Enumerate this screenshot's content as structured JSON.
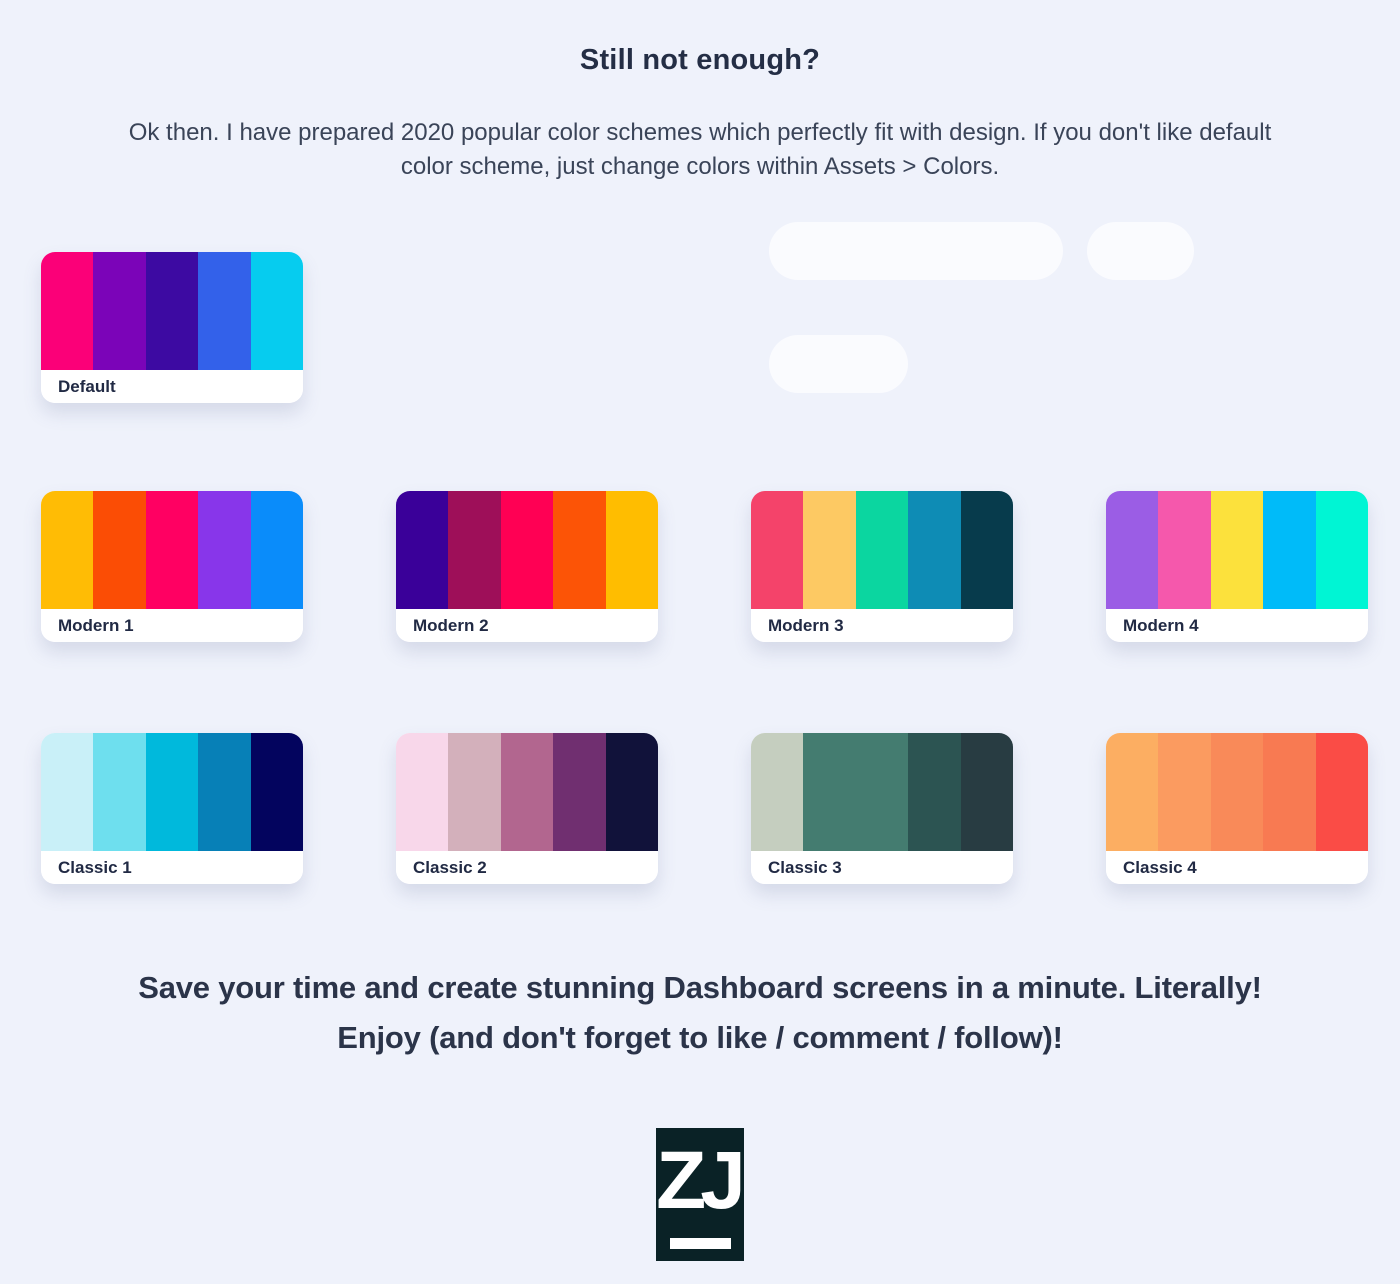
{
  "page": {
    "background": "#EFF2FB"
  },
  "header": {
    "title": "Still not enough?",
    "description": "Ok then. I have prepared 2020 popular color schemes which perfectly fit with design. If you don't like default color scheme, just change colors within Assets > Colors."
  },
  "palettes": [
    {
      "label": "Default",
      "colors": [
        "#FB0078",
        "#7B04B8",
        "#3D0AA2",
        "#3361EA",
        "#06CCEF"
      ]
    },
    {
      "label": "Modern 1",
      "colors": [
        "#FFBC05",
        "#FB4D05",
        "#FF0062",
        "#8836EA",
        "#0A8CFA"
      ]
    },
    {
      "label": "Modern 2",
      "colors": [
        "#3A0099",
        "#9E0F59",
        "#FF0054",
        "#FC5406",
        "#FFBD00"
      ]
    },
    {
      "label": "Modern 3",
      "colors": [
        "#F4436A",
        "#FDC963",
        "#0BD6A0",
        "#0E8CB5",
        "#073B4C"
      ]
    },
    {
      "label": "Modern 4",
      "colors": [
        "#9B5DE5",
        "#F558AC",
        "#FCE13C",
        "#00BBF9",
        "#00F5D4"
      ]
    },
    {
      "label": "Classic 1",
      "colors": [
        "#C9F0F8",
        "#6EDFEE",
        "#00B9DC",
        "#0780B7",
        "#03045E"
      ]
    },
    {
      "label": "Classic 2",
      "colors": [
        "#F8D7EA",
        "#D3B0BB",
        "#B2668F",
        "#702F70",
        "#11123A"
      ]
    },
    {
      "label": "Classic 3",
      "colors": [
        "#C5CEBF",
        "#447C70",
        "#447C70",
        "#2C5452",
        "#283C42"
      ]
    },
    {
      "label": "Classic 4",
      "colors": [
        "#FCAE62",
        "#FB9B60",
        "#F98A59",
        "#F87A52",
        "#FA4C46"
      ]
    }
  ],
  "placeholders": {
    "color": "#FAFBFE"
  },
  "footer": {
    "line1": "Save your time and create stunning Dashboard screens in a minute. Literally!",
    "line2": "Enjoy (and don't forget to like / comment / follow)!"
  },
  "logo": {
    "text": "ZJ",
    "background": "#0A2226"
  }
}
